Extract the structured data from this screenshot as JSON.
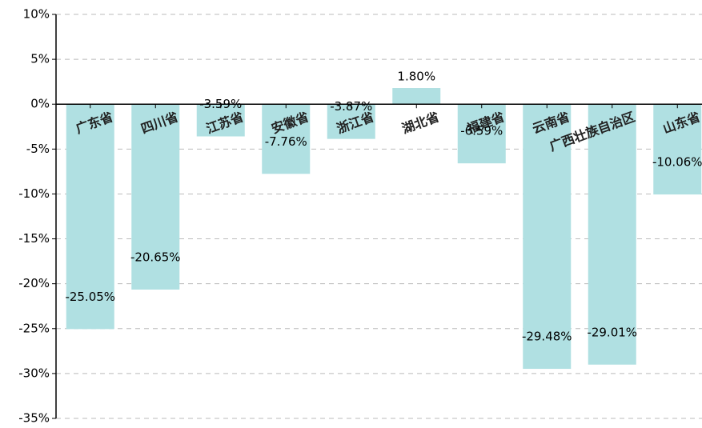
{
  "chart_data": {
    "type": "bar",
    "categories": [
      "广东省",
      "四川省",
      "江苏省",
      "安徽省",
      "浙江省",
      "湖北省",
      "福建省",
      "云南省",
      "广西壮族自治区",
      "山东省"
    ],
    "values": [
      -25.05,
      -20.65,
      -3.59,
      -7.76,
      -3.87,
      1.8,
      -6.59,
      -29.48,
      -29.01,
      -10.06
    ],
    "value_labels": [
      "-25.05%",
      "-20.65%",
      "-3.59%",
      "-7.76%",
      "-3.87%",
      "1.80%",
      "-6.59%",
      "-29.48%",
      "-29.01%",
      "-10.06%"
    ],
    "color": "#b0e0e2",
    "ylim": [
      -35,
      10
    ],
    "yticks": [
      {
        "value": -35,
        "label": "-35%"
      },
      {
        "value": -30,
        "label": "-30%"
      },
      {
        "value": -25,
        "label": "-25%"
      },
      {
        "value": -20,
        "label": "-20%"
      },
      {
        "value": -15,
        "label": "-15%"
      },
      {
        "value": -10,
        "label": "-10%"
      },
      {
        "value": -5,
        "label": "-5%"
      },
      {
        "value": 0,
        "label": "0%"
      },
      {
        "value": 5,
        "label": "5%"
      },
      {
        "value": 10,
        "label": "10%"
      }
    ],
    "grid": true
  }
}
